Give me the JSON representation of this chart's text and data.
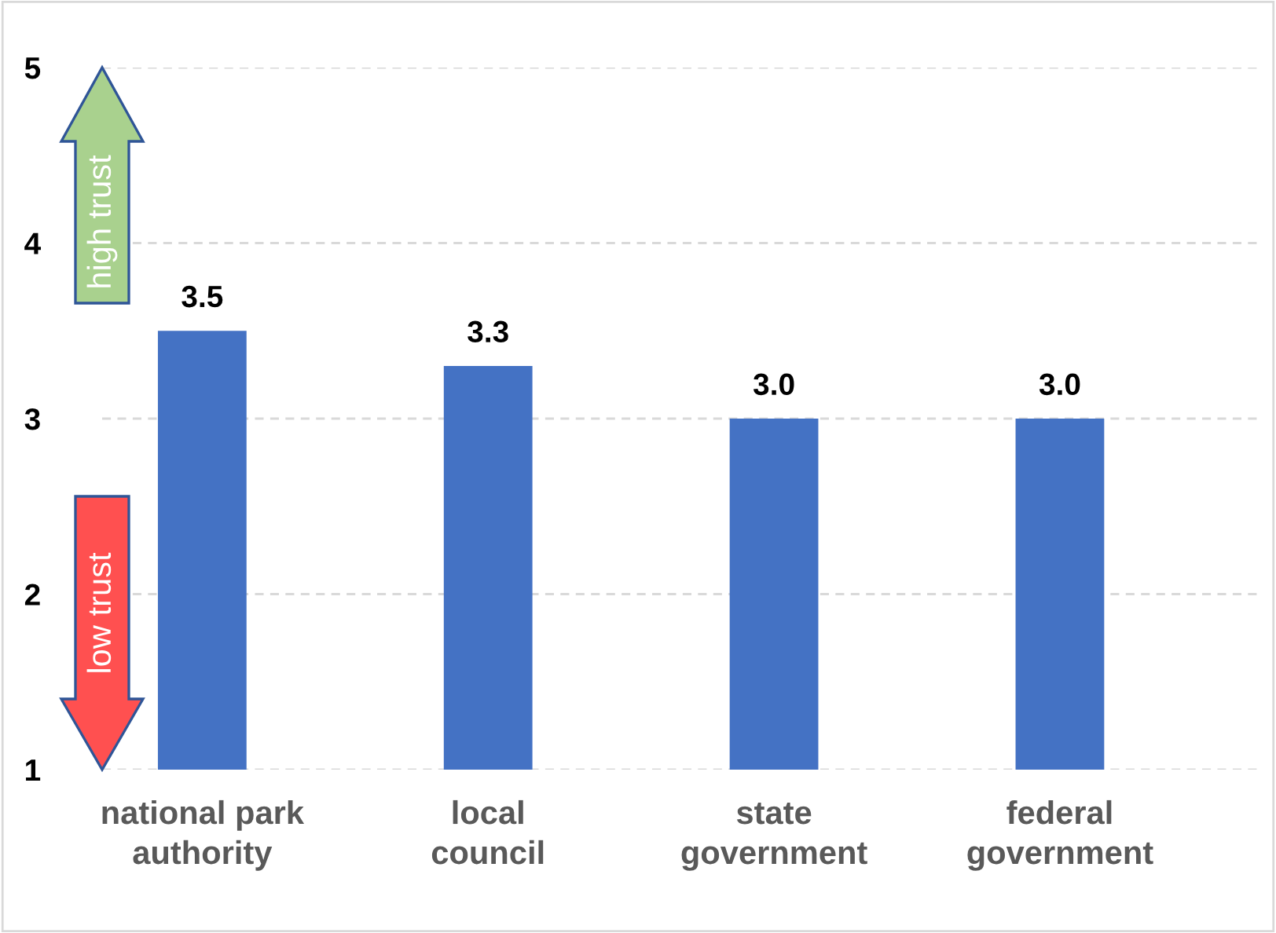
{
  "chart_data": {
    "type": "bar",
    "categories": [
      "national park\nauthority",
      "local\ncouncil",
      "state\ngovernment",
      "federal\ngovernment"
    ],
    "values": [
      3.5,
      3.3,
      3.0,
      3.0
    ],
    "color": "#4472c4",
    "ylim": [
      1,
      5
    ],
    "yticks": [
      1,
      2,
      3,
      4,
      5
    ],
    "value_labels": [
      "3.5",
      "3.3",
      "3.0",
      "3.0"
    ],
    "grid": "y",
    "legend": false,
    "annotations": [
      "high trust",
      "low trust"
    ]
  }
}
